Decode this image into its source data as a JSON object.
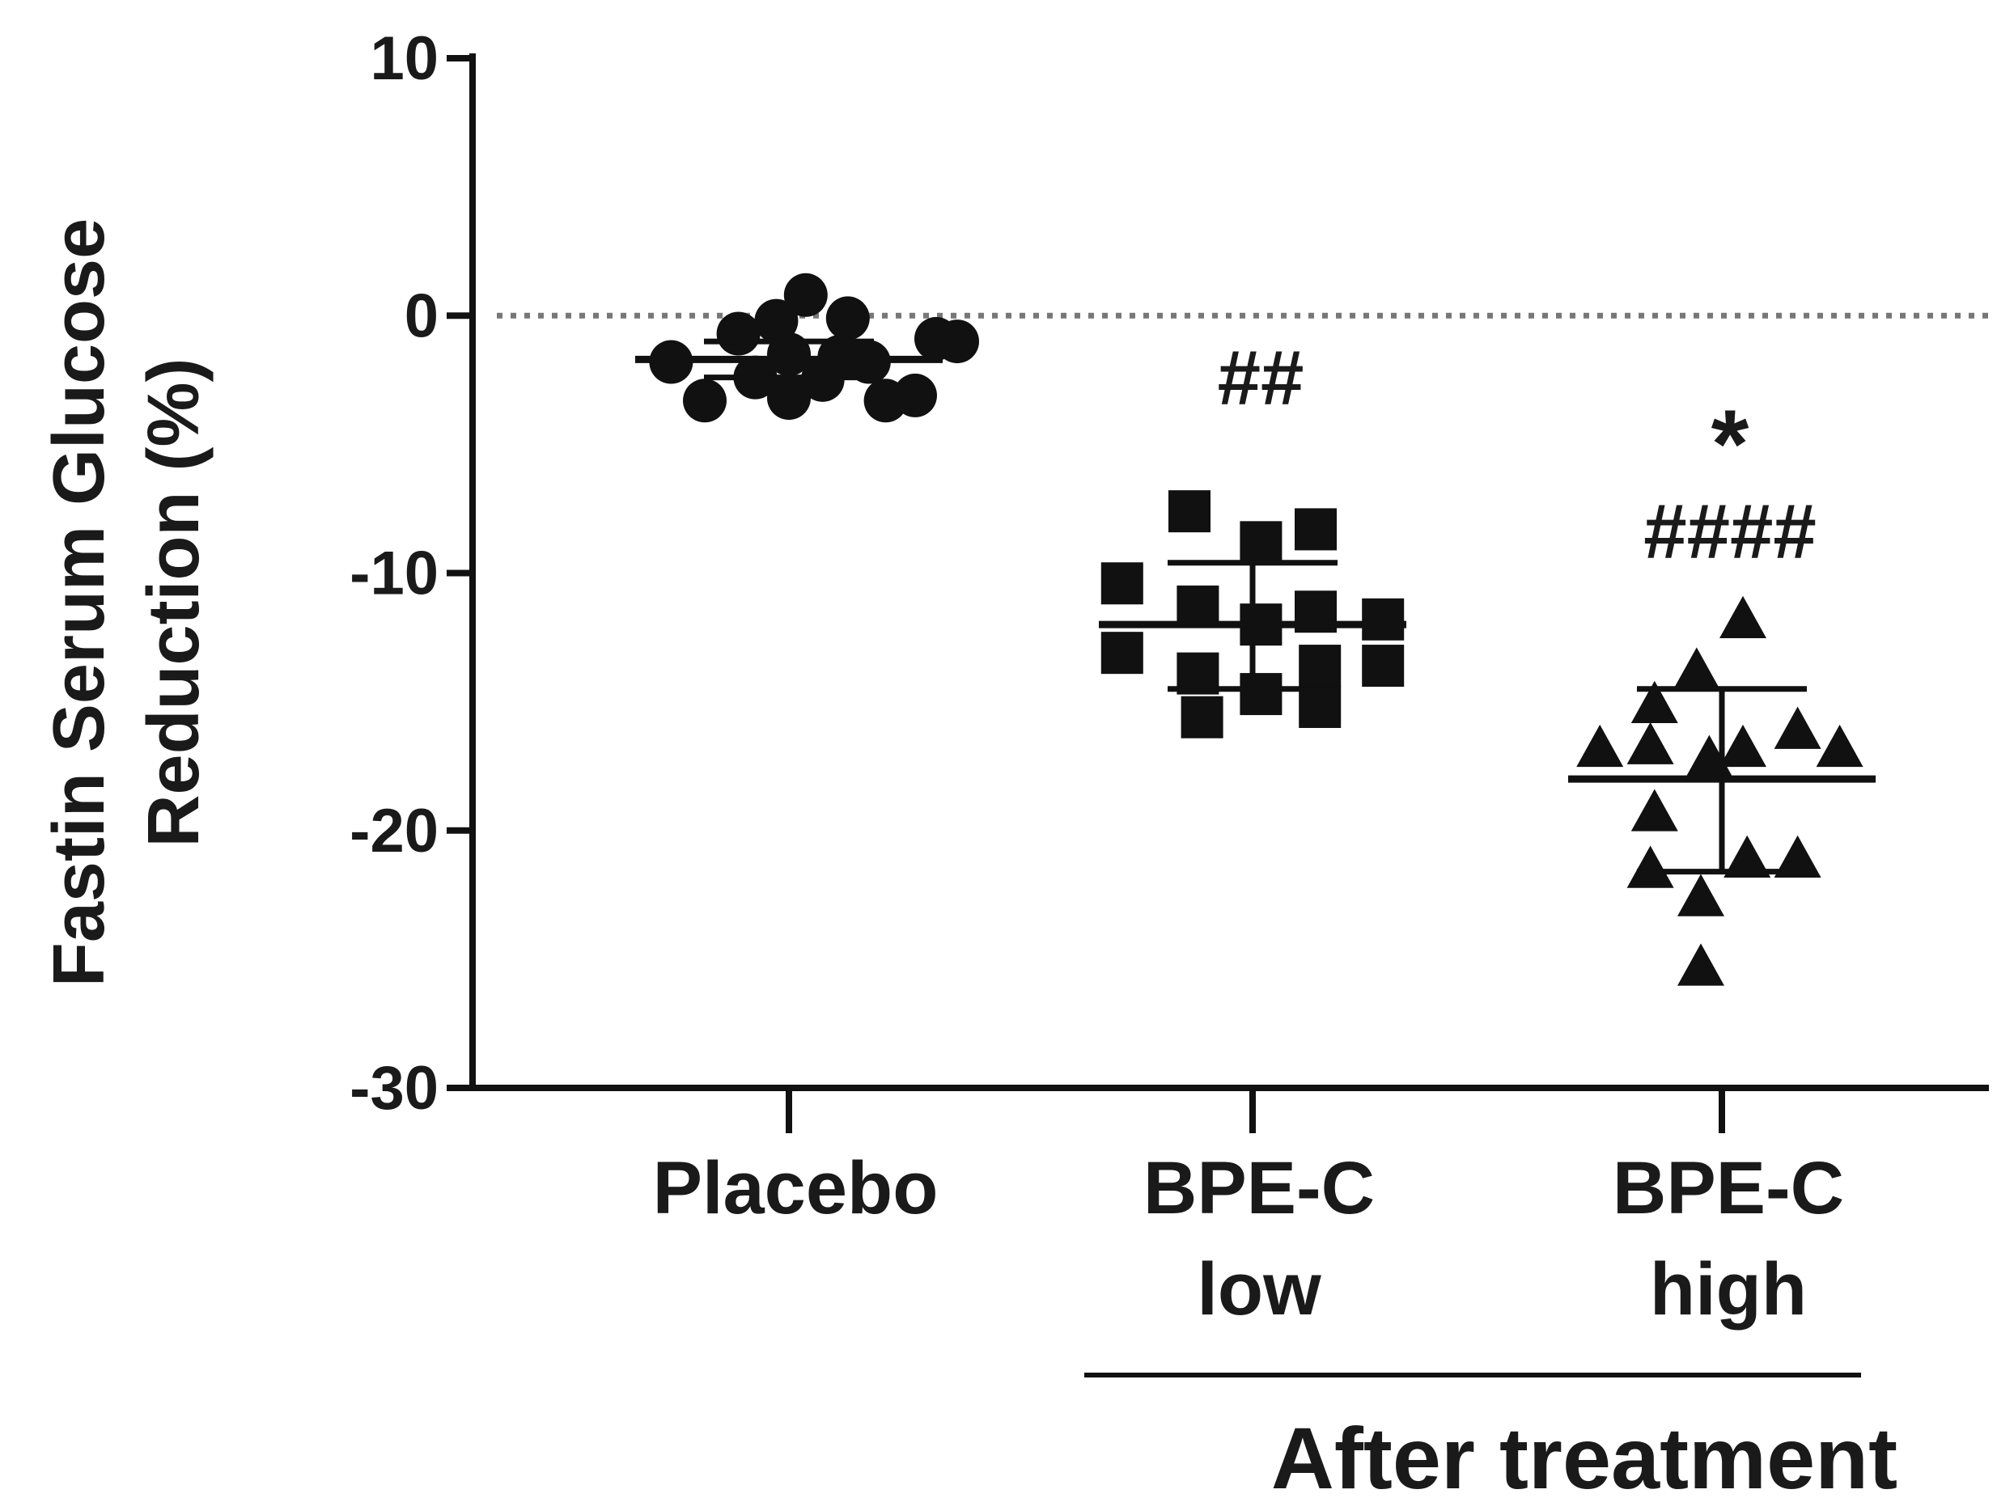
{
  "chart_data": {
    "type": "scatter",
    "title": "",
    "ylabel_lines": [
      "Fastin Serum Glucose",
      "Reduction (%)"
    ],
    "ylim": [
      -30,
      10
    ],
    "yticks": [
      10,
      0,
      -10,
      -20,
      -30
    ],
    "ytick_labels": [
      "10",
      "0",
      "-10",
      "-20",
      "-30"
    ],
    "reference_line": {
      "y": 0,
      "style": "dotted"
    },
    "groups": [
      {
        "name": "Placebo",
        "label_lines": [
          "Placebo"
        ],
        "marker": "circle",
        "mean": -1.7,
        "sd_upper": -1.0,
        "sd_lower": -2.4,
        "annotations": [],
        "points": [
          {
            "x": -0.28,
            "y": -1.8
          },
          {
            "x": -0.2,
            "y": -3.3
          },
          {
            "x": -0.12,
            "y": -0.7
          },
          {
            "x": -0.08,
            "y": -2.4
          },
          {
            "x": -0.03,
            "y": -0.2
          },
          {
            "x": 0.0,
            "y": -1.5
          },
          {
            "x": 0.0,
            "y": -3.2
          },
          {
            "x": 0.04,
            "y": 0.8
          },
          {
            "x": 0.08,
            "y": -2.5
          },
          {
            "x": 0.12,
            "y": -1.6
          },
          {
            "x": 0.14,
            "y": -0.1
          },
          {
            "x": 0.19,
            "y": -1.8
          },
          {
            "x": 0.23,
            "y": -3.3
          },
          {
            "x": 0.3,
            "y": -3.1
          },
          {
            "x": 0.35,
            "y": -0.9
          },
          {
            "x": 0.4,
            "y": -1.0
          }
        ]
      },
      {
        "name": "BPE-C low",
        "label_lines": [
          "BPE-C",
          "low"
        ],
        "marker": "square",
        "mean": -12.0,
        "sd_upper": -9.6,
        "sd_lower": -14.5,
        "annotations": [
          "##"
        ],
        "points": [
          {
            "x": -0.31,
            "y": -10.4
          },
          {
            "x": -0.31,
            "y": -13.1
          },
          {
            "x": -0.15,
            "y": -7.6
          },
          {
            "x": -0.13,
            "y": -11.3
          },
          {
            "x": -0.13,
            "y": -13.9
          },
          {
            "x": -0.12,
            "y": -15.6
          },
          {
            "x": 0.02,
            "y": -8.8
          },
          {
            "x": 0.02,
            "y": -12.0
          },
          {
            "x": 0.02,
            "y": -14.7
          },
          {
            "x": 0.15,
            "y": -11.5
          },
          {
            "x": 0.16,
            "y": -13.6
          },
          {
            "x": 0.16,
            "y": -15.2
          },
          {
            "x": 0.15,
            "y": -8.3
          },
          {
            "x": 0.31,
            "y": -11.8
          },
          {
            "x": 0.31,
            "y": -13.6
          }
        ]
      },
      {
        "name": "BPE-C high",
        "label_lines": [
          "BPE-C",
          "high"
        ],
        "marker": "triangle",
        "mean": -18.0,
        "sd_upper": -14.5,
        "sd_lower": -21.6,
        "annotations": [
          "*",
          "####"
        ],
        "points": [
          {
            "x": 0.05,
            "y": -11.8
          },
          {
            "x": -0.06,
            "y": -13.8
          },
          {
            "x": -0.16,
            "y": -15.1
          },
          {
            "x": -0.29,
            "y": -16.8
          },
          {
            "x": -0.17,
            "y": -16.7
          },
          {
            "x": -0.03,
            "y": -17.2
          },
          {
            "x": 0.05,
            "y": -16.8
          },
          {
            "x": 0.18,
            "y": -16.1
          },
          {
            "x": 0.28,
            "y": -16.8
          },
          {
            "x": -0.16,
            "y": -19.3
          },
          {
            "x": -0.17,
            "y": -21.5
          },
          {
            "x": -0.05,
            "y": -22.6
          },
          {
            "x": 0.06,
            "y": -21.1
          },
          {
            "x": 0.18,
            "y": -21.1
          },
          {
            "x": -0.05,
            "y": -25.3
          }
        ]
      }
    ],
    "bracket": {
      "label": "After treatment",
      "groups": [
        "BPE-C low",
        "BPE-C high"
      ]
    },
    "grid": false,
    "legend": "none"
  }
}
